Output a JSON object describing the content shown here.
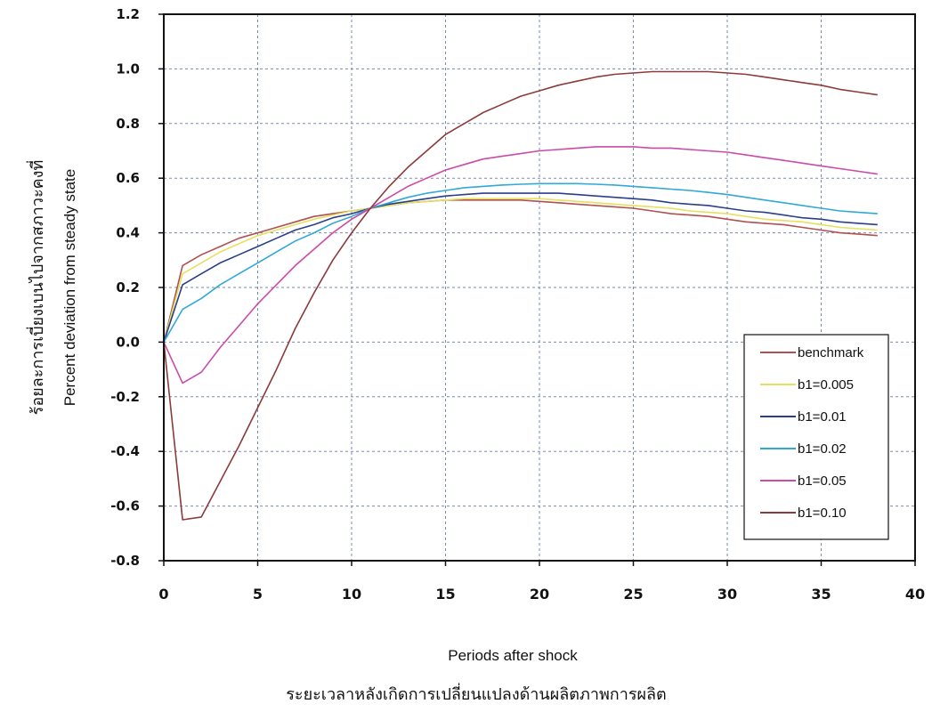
{
  "chart_data": {
    "type": "line",
    "xlabel": "Periods after shock",
    "xlabel_thai": "ระยะเวลาหลังเกิดการเปลี่ยนแปลงด้านผลิตภาพการผลิต",
    "ylabel": "Percent deviation from steady state",
    "ylabel_thai": "ร้อยละการเบี่ยงเบนไปจากสภาวะคงที่",
    "xlim": [
      0,
      40
    ],
    "ylim": [
      -0.8,
      1.2
    ],
    "x_ticks": [
      "0",
      "5",
      "10",
      "15",
      "20",
      "25",
      "30",
      "35",
      "40"
    ],
    "y_ticks": [
      "1.2",
      "1.0",
      "0.8",
      "0.6",
      "0.4",
      "0.2",
      "0.0",
      "-0.2",
      "-0.4",
      "-0.6",
      "-0.8"
    ],
    "grid": true,
    "legend_position": "bottom-right",
    "x": [
      0,
      1,
      2,
      3,
      4,
      5,
      6,
      7,
      8,
      9,
      10,
      11,
      12,
      13,
      14,
      15,
      16,
      17,
      18,
      19,
      20,
      21,
      22,
      23,
      24,
      25,
      26,
      27,
      28,
      29,
      30,
      31,
      32,
      33,
      34,
      35,
      36,
      37,
      38
    ],
    "series": [
      {
        "name": "benchmark",
        "color": "#b05050",
        "values": [
          0.0,
          0.28,
          0.32,
          0.35,
          0.38,
          0.4,
          0.42,
          0.44,
          0.46,
          0.47,
          0.48,
          0.49,
          0.5,
          0.51,
          0.515,
          0.52,
          0.52,
          0.52,
          0.52,
          0.52,
          0.515,
          0.51,
          0.505,
          0.5,
          0.495,
          0.49,
          0.48,
          0.47,
          0.465,
          0.46,
          0.45,
          0.44,
          0.435,
          0.43,
          0.42,
          0.41,
          0.4,
          0.395,
          0.39
        ]
      },
      {
        "name": "b1=0.005",
        "color": "#e6e060",
        "values": [
          0.0,
          0.25,
          0.29,
          0.33,
          0.36,
          0.39,
          0.41,
          0.43,
          0.45,
          0.465,
          0.48,
          0.49,
          0.5,
          0.51,
          0.515,
          0.52,
          0.525,
          0.525,
          0.525,
          0.525,
          0.525,
          0.52,
          0.515,
          0.51,
          0.505,
          0.5,
          0.495,
          0.49,
          0.48,
          0.475,
          0.47,
          0.46,
          0.45,
          0.445,
          0.44,
          0.43,
          0.42,
          0.415,
          0.41
        ]
      },
      {
        "name": "b1=0.01",
        "color": "#2a3f8a",
        "values": [
          0.0,
          0.21,
          0.25,
          0.29,
          0.32,
          0.35,
          0.38,
          0.41,
          0.43,
          0.455,
          0.47,
          0.49,
          0.505,
          0.515,
          0.525,
          0.535,
          0.54,
          0.545,
          0.545,
          0.545,
          0.545,
          0.545,
          0.54,
          0.535,
          0.53,
          0.525,
          0.52,
          0.51,
          0.505,
          0.5,
          0.49,
          0.48,
          0.475,
          0.465,
          0.455,
          0.45,
          0.44,
          0.435,
          0.43
        ]
      },
      {
        "name": "b1=0.02",
        "color": "#30a8d8",
        "values": [
          0.0,
          0.12,
          0.16,
          0.21,
          0.25,
          0.29,
          0.33,
          0.37,
          0.4,
          0.435,
          0.46,
          0.49,
          0.51,
          0.53,
          0.545,
          0.555,
          0.565,
          0.57,
          0.575,
          0.578,
          0.58,
          0.58,
          0.58,
          0.578,
          0.575,
          0.57,
          0.565,
          0.56,
          0.555,
          0.548,
          0.54,
          0.53,
          0.52,
          0.51,
          0.5,
          0.49,
          0.48,
          0.475,
          0.47
        ]
      },
      {
        "name": "b1=0.05",
        "color": "#cc4aa8",
        "values": [
          0.0,
          -0.15,
          -0.11,
          -0.02,
          0.06,
          0.14,
          0.21,
          0.28,
          0.34,
          0.4,
          0.45,
          0.49,
          0.53,
          0.57,
          0.6,
          0.63,
          0.65,
          0.67,
          0.68,
          0.69,
          0.7,
          0.705,
          0.71,
          0.715,
          0.715,
          0.715,
          0.71,
          0.71,
          0.705,
          0.7,
          0.695,
          0.685,
          0.675,
          0.665,
          0.655,
          0.645,
          0.635,
          0.625,
          0.615
        ]
      },
      {
        "name": "b1=0.10",
        "color": "#8c3a3a",
        "values": [
          0.0,
          -0.65,
          -0.64,
          -0.51,
          -0.38,
          -0.24,
          -0.1,
          0.05,
          0.18,
          0.3,
          0.4,
          0.49,
          0.57,
          0.64,
          0.7,
          0.76,
          0.8,
          0.84,
          0.87,
          0.9,
          0.92,
          0.94,
          0.955,
          0.97,
          0.98,
          0.985,
          0.99,
          0.99,
          0.99,
          0.99,
          0.985,
          0.98,
          0.97,
          0.96,
          0.95,
          0.94,
          0.925,
          0.915,
          0.905
        ]
      }
    ]
  }
}
